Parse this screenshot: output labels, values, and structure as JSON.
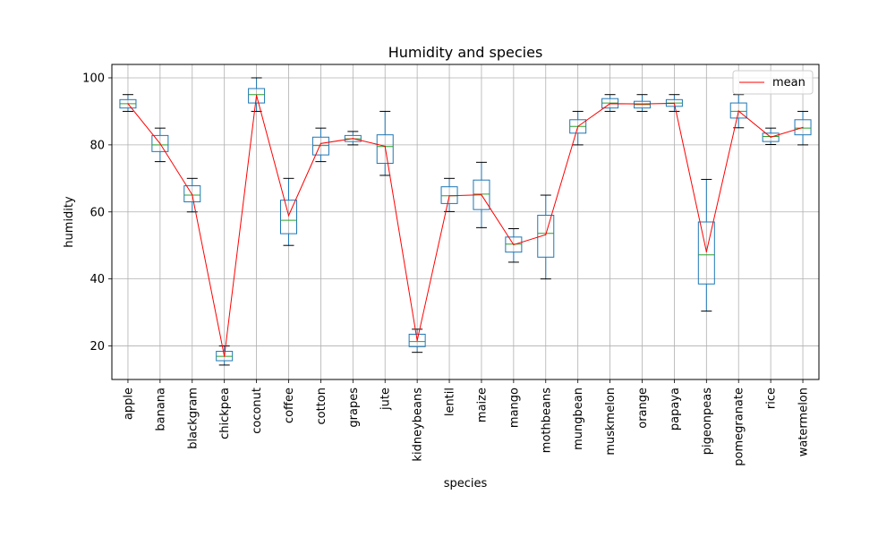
{
  "chart_data": {
    "type": "box",
    "title": "Humidity and species",
    "xlabel": "species",
    "ylabel": "humidity",
    "ylim": [
      10,
      104
    ],
    "yticks": [
      20,
      40,
      60,
      80,
      100
    ],
    "grid": true,
    "legend": {
      "position": "top-right",
      "entries": [
        "mean"
      ]
    },
    "colors": {
      "box": "#1f77b4",
      "median": "#2ca02c",
      "mean_line": "#ff0000",
      "grid": "#b0b0b0"
    },
    "categories": [
      "apple",
      "banana",
      "blackgram",
      "chickpea",
      "coconut",
      "coffee",
      "cotton",
      "grapes",
      "jute",
      "kidneybeans",
      "lentil",
      "maize",
      "mango",
      "mothbeans",
      "mungbean",
      "muskmelon",
      "orange",
      "papaya",
      "pigeonpeas",
      "pomegranate",
      "rice",
      "watermelon"
    ],
    "boxes": [
      {
        "min": 90.0,
        "q1": 91.0,
        "median": 92.3,
        "q3": 93.5,
        "max": 95.0
      },
      {
        "min": 75.0,
        "q1": 78.0,
        "median": 80.0,
        "q3": 82.8,
        "max": 85.0
      },
      {
        "min": 60.0,
        "q1": 63.0,
        "median": 65.0,
        "q3": 67.8,
        "max": 70.0
      },
      {
        "min": 14.3,
        "q1": 15.6,
        "median": 16.9,
        "q3": 18.4,
        "max": 20.0
      },
      {
        "min": 90.0,
        "q1": 92.5,
        "median": 95.0,
        "q3": 96.8,
        "max": 100.0
      },
      {
        "min": 50.0,
        "q1": 53.5,
        "median": 57.5,
        "q3": 63.5,
        "max": 70.0
      },
      {
        "min": 75.0,
        "q1": 77.0,
        "median": 79.8,
        "q3": 82.3,
        "max": 85.0
      },
      {
        "min": 80.0,
        "q1": 81.0,
        "median": 81.8,
        "q3": 82.8,
        "max": 84.0
      },
      {
        "min": 70.9,
        "q1": 74.5,
        "median": 79.5,
        "q3": 83.0,
        "max": 90.0
      },
      {
        "min": 18.1,
        "q1": 19.8,
        "median": 21.3,
        "q3": 23.5,
        "max": 25.0
      },
      {
        "min": 60.1,
        "q1": 62.5,
        "median": 64.8,
        "q3": 67.5,
        "max": 70.0
      },
      {
        "min": 55.3,
        "q1": 60.7,
        "median": 65.3,
        "q3": 69.5,
        "max": 74.8
      },
      {
        "min": 45.0,
        "q1": 48.0,
        "median": 50.4,
        "q3": 52.5,
        "max": 55.0
      },
      {
        "min": 40.0,
        "q1": 46.5,
        "median": 53.6,
        "q3": 59.0,
        "max": 65.0
      },
      {
        "min": 80.0,
        "q1": 83.5,
        "median": 85.5,
        "q3": 87.5,
        "max": 90.0
      },
      {
        "min": 90.0,
        "q1": 91.0,
        "median": 92.5,
        "q3": 93.8,
        "max": 95.0
      },
      {
        "min": 90.0,
        "q1": 91.0,
        "median": 92.0,
        "q3": 93.0,
        "max": 95.0
      },
      {
        "min": 90.0,
        "q1": 91.5,
        "median": 92.5,
        "q3": 93.5,
        "max": 95.0
      },
      {
        "min": 30.4,
        "q1": 38.5,
        "median": 47.2,
        "q3": 57.0,
        "max": 69.7
      },
      {
        "min": 85.1,
        "q1": 88.0,
        "median": 90.0,
        "q3": 92.5,
        "max": 95.0
      },
      {
        "min": 80.1,
        "q1": 81.0,
        "median": 82.5,
        "q3": 83.5,
        "max": 85.0
      },
      {
        "min": 80.0,
        "q1": 83.0,
        "median": 85.0,
        "q3": 87.5,
        "max": 90.0
      }
    ],
    "series": [
      {
        "name": "mean",
        "values": [
          92.3,
          80.4,
          65.1,
          16.9,
          94.8,
          58.9,
          80.4,
          81.9,
          79.6,
          21.6,
          64.8,
          65.1,
          50.2,
          53.2,
          85.5,
          92.3,
          92.2,
          92.4,
          48.1,
          90.1,
          82.3,
          85.2
        ]
      }
    ]
  }
}
